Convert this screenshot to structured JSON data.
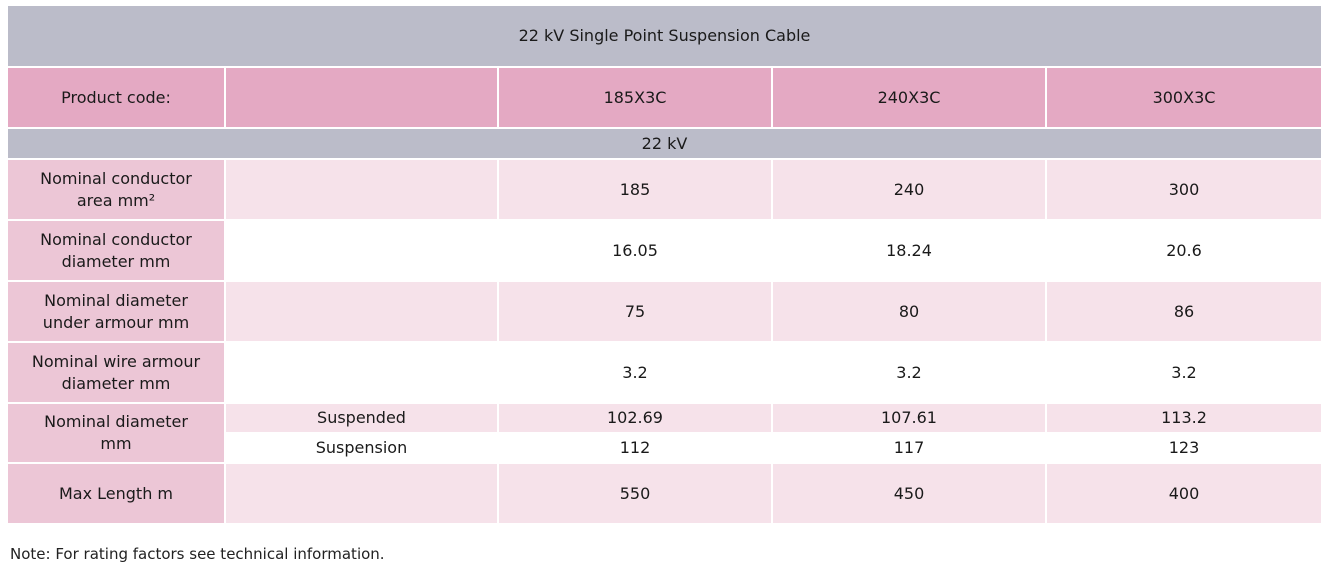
{
  "title": "22 kV Single Point Suspension Cable",
  "header": {
    "label": "Product code:",
    "blank": "",
    "codes": [
      "185X3C",
      "240X3C",
      "300X3C"
    ]
  },
  "section": "22 kV",
  "rows": [
    {
      "label_line1": "Nominal conductor",
      "label_line2": "area mm²",
      "values": [
        "185",
        "240",
        "300"
      ]
    },
    {
      "label_line1": "Nominal conductor",
      "label_line2": "diameter mm",
      "values": [
        "16.05",
        "18.24",
        "20.6"
      ]
    },
    {
      "label_line1": "Nominal diameter",
      "label_line2": "under armour mm",
      "values": [
        "75",
        "80",
        "86"
      ]
    },
    {
      "label_line1": "Nominal wire armour",
      "label_line2": "diameter mm",
      "values": [
        "3.2",
        "3.2",
        "3.2"
      ]
    }
  ],
  "diameter_group": {
    "label_line1": "Nominal diameter",
    "label_line2": "mm",
    "sub_rows": [
      {
        "condition": "Suspended",
        "values": [
          "102.69",
          "107.61",
          "113.2"
        ]
      },
      {
        "condition": "Suspension",
        "values": [
          "112",
          "117",
          "123"
        ]
      }
    ]
  },
  "max_length": {
    "label": "Max Length m",
    "values": [
      "550",
      "450",
      "400"
    ]
  },
  "note": "Note: For rating factors see technical information."
}
